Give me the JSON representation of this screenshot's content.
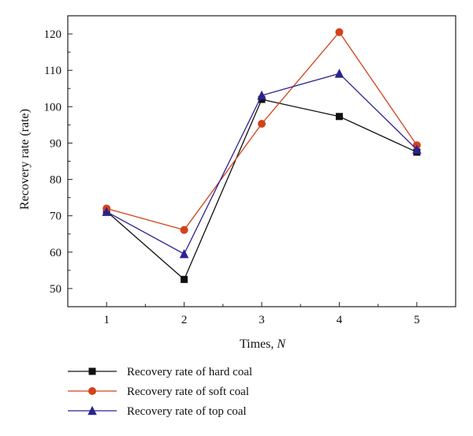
{
  "chart_data": {
    "type": "line",
    "xlabel": "Times, N",
    "xlabel_main": "Times, ",
    "xlabel_italic": "N",
    "ylabel": "Recovery rate (rate)",
    "x": [
      1,
      2,
      3,
      4,
      5
    ],
    "xlim": [
      0.5,
      5.5
    ],
    "ylim": [
      45,
      125
    ],
    "x_ticks": [
      1,
      2,
      3,
      4,
      5
    ],
    "y_ticks": [
      50,
      60,
      70,
      80,
      90,
      100,
      110,
      120
    ],
    "grid": false,
    "legend_placement": "bottom-left",
    "series": [
      {
        "name": "Recovery rate of hard coal",
        "color": "#111111",
        "marker": "square",
        "values": [
          71.2,
          52.5,
          102.0,
          97.3,
          87.5
        ]
      },
      {
        "name": "Recovery rate of soft coal",
        "color": "#d2421b",
        "marker": "circle",
        "values": [
          72.0,
          66.1,
          95.3,
          120.5,
          89.4
        ]
      },
      {
        "name": "Recovery rate of top coal",
        "color": "#2b2290",
        "marker": "triangle",
        "values": [
          71.1,
          59.5,
          103.1,
          109.1,
          88.2
        ]
      }
    ]
  }
}
